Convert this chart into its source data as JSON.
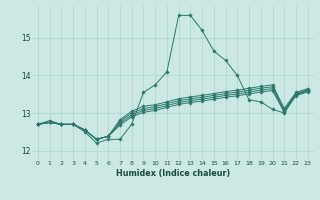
{
  "xlabel": "Humidex (Indice chaleur)",
  "bg_color": "#cce8e4",
  "grid_color": "#aad4cc",
  "line_color": "#2a7a6a",
  "xlim": [
    -0.5,
    23.5
  ],
  "ylim": [
    11.75,
    15.85
  ],
  "yticks": [
    12,
    13,
    14,
    15
  ],
  "xticks": [
    0,
    1,
    2,
    3,
    4,
    5,
    6,
    7,
    8,
    9,
    10,
    11,
    12,
    13,
    14,
    15,
    16,
    17,
    18,
    19,
    20,
    21,
    22,
    23
  ],
  "series": [
    [
      12.7,
      12.8,
      12.7,
      12.7,
      12.5,
      12.2,
      12.3,
      12.3,
      12.7,
      13.55,
      13.75,
      14.1,
      15.6,
      15.6,
      15.2,
      14.65,
      14.4,
      14.0,
      13.35,
      13.3,
      13.1,
      13.0,
      13.5,
      13.6
    ],
    [
      12.7,
      12.75,
      12.7,
      12.7,
      12.55,
      12.3,
      12.38,
      12.82,
      13.05,
      13.18,
      13.22,
      13.3,
      13.38,
      13.43,
      13.47,
      13.52,
      13.57,
      13.61,
      13.66,
      13.71,
      13.75,
      13.12,
      13.55,
      13.65
    ],
    [
      12.7,
      12.75,
      12.7,
      12.7,
      12.55,
      12.3,
      12.38,
      12.78,
      13.0,
      13.12,
      13.17,
      13.25,
      13.33,
      13.38,
      13.42,
      13.47,
      13.52,
      13.56,
      13.61,
      13.66,
      13.7,
      13.08,
      13.52,
      13.62
    ],
    [
      12.7,
      12.75,
      12.7,
      12.7,
      12.55,
      12.3,
      12.38,
      12.73,
      12.95,
      13.07,
      13.12,
      13.2,
      13.28,
      13.33,
      13.37,
      13.42,
      13.47,
      13.51,
      13.56,
      13.61,
      13.65,
      13.05,
      13.49,
      13.59
    ],
    [
      12.7,
      12.75,
      12.7,
      12.7,
      12.55,
      12.3,
      12.38,
      12.68,
      12.9,
      13.02,
      13.07,
      13.15,
      13.23,
      13.28,
      13.32,
      13.37,
      13.42,
      13.46,
      13.51,
      13.56,
      13.6,
      13.02,
      13.46,
      13.56
    ]
  ]
}
